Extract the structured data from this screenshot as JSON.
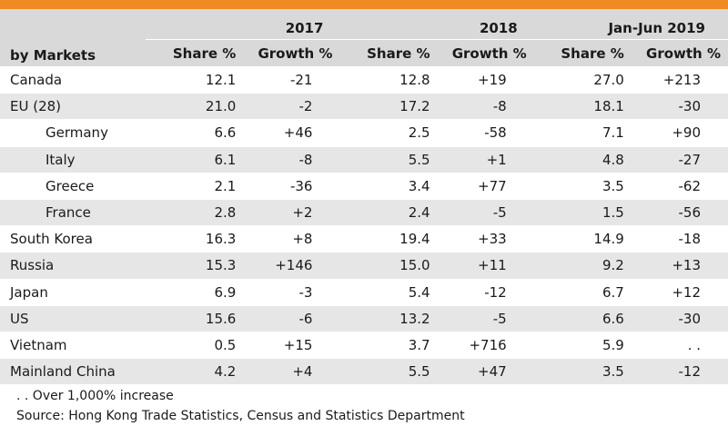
{
  "header": {
    "row_label": "by Markets",
    "years": [
      "2017",
      "2018",
      "Jan-Jun 2019"
    ],
    "share_label": "Share %",
    "growth_label": "Growth %"
  },
  "rows": [
    {
      "market": "Canada",
      "sub": false,
      "values": [
        "12.1",
        "-21",
        "12.8",
        "+19",
        "27.0",
        "+213"
      ]
    },
    {
      "market": "EU (28)",
      "sub": false,
      "values": [
        "21.0",
        "-2",
        "17.2",
        "-8",
        "18.1",
        "-30"
      ]
    },
    {
      "market": "Germany",
      "sub": true,
      "values": [
        "6.6",
        "+46",
        "2.5",
        "-58",
        "7.1",
        "+90"
      ]
    },
    {
      "market": "Italy",
      "sub": true,
      "values": [
        "6.1",
        "-8",
        "5.5",
        "+1",
        "4.8",
        "-27"
      ]
    },
    {
      "market": "Greece",
      "sub": true,
      "values": [
        "2.1",
        "-36",
        "3.4",
        "+77",
        "3.5",
        "-62"
      ]
    },
    {
      "market": "France",
      "sub": true,
      "values": [
        "2.8",
        "+2",
        "2.4",
        "-5",
        "1.5",
        "-56"
      ]
    },
    {
      "market": "South Korea",
      "sub": false,
      "values": [
        "16.3",
        "+8",
        "19.4",
        "+33",
        "14.9",
        "-18"
      ]
    },
    {
      "market": "Russia",
      "sub": false,
      "values": [
        "15.3",
        "+146",
        "15.0",
        "+11",
        "9.2",
        "+13"
      ]
    },
    {
      "market": "Japan",
      "sub": false,
      "values": [
        "6.9",
        "-3",
        "5.4",
        "-12",
        "6.7",
        "+12"
      ]
    },
    {
      "market": "US",
      "sub": false,
      "values": [
        "15.6",
        "-6",
        "13.2",
        "-5",
        "6.6",
        "-30"
      ]
    },
    {
      "market": "Vietnam",
      "sub": false,
      "values": [
        "0.5",
        "+15",
        "3.7",
        "+716",
        "5.9",
        ". ."
      ]
    },
    {
      "market": "Mainland China",
      "sub": false,
      "values": [
        "4.2",
        "+4",
        "5.5",
        "+47",
        "3.5",
        "-12"
      ]
    }
  ],
  "notes": {
    "footnote": ". . Over 1,000% increase",
    "source": "Source: Hong Kong Trade Statistics, Census and Statistics Department"
  },
  "colors": {
    "accent_bar": "#f08a24",
    "header_bg": "#d9d9d9",
    "stripe_bg": "#e6e6e6"
  }
}
